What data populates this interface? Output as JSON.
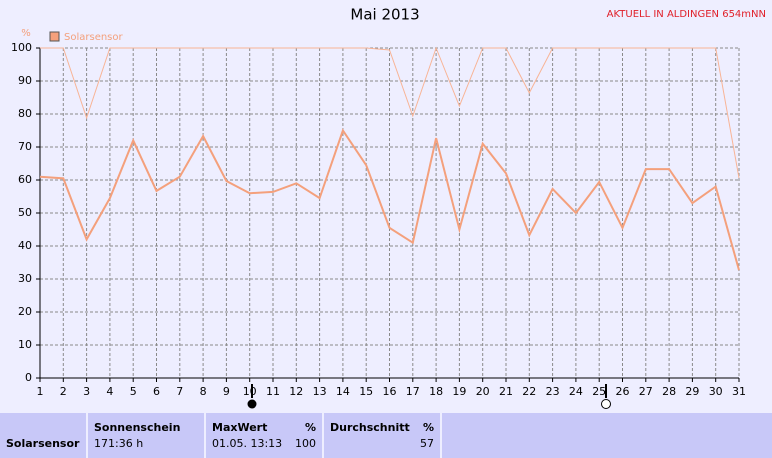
{
  "chart_data": {
    "type": "line",
    "title": "Mai 2013",
    "annotation": "AKTUELL IN ALDINGEN 654mNN",
    "y_label": "%",
    "x": [
      1,
      2,
      3,
      4,
      5,
      6,
      7,
      8,
      9,
      10,
      11,
      12,
      13,
      14,
      15,
      16,
      17,
      18,
      19,
      20,
      21,
      22,
      23,
      24,
      25,
      26,
      27,
      28,
      29,
      30,
      31
    ],
    "xlim": [
      1,
      31
    ],
    "xticks": [
      1,
      2,
      3,
      4,
      5,
      6,
      7,
      8,
      9,
      10,
      11,
      12,
      13,
      14,
      15,
      16,
      17,
      18,
      19,
      20,
      21,
      22,
      23,
      24,
      25,
      26,
      27,
      28,
      29,
      30,
      31
    ],
    "ylim": [
      0,
      100
    ],
    "yticks": [
      0,
      10,
      20,
      30,
      40,
      50,
      60,
      70,
      80,
      90,
      100
    ],
    "grid": true,
    "legend": "top-left",
    "series": [
      {
        "name": "Solarsensor",
        "color": "#f4a07c",
        "values": [
          61,
          60.5,
          42,
          54.5,
          72,
          56.7,
          61,
          73.3,
          59.7,
          56,
          56.4,
          59,
          54.5,
          75,
          64.5,
          45.5,
          41,
          72.7,
          45,
          71,
          62,
          43.3,
          57.3,
          50,
          59.4,
          45.5,
          63.3,
          63.3,
          53,
          58,
          32.7
        ]
      },
      {
        "color": "#f8b496",
        "values": [
          100,
          100,
          78.8,
          100,
          100,
          100,
          100,
          100,
          100,
          100,
          100,
          100,
          100,
          100,
          100,
          99.4,
          79.4,
          100,
          82.4,
          100,
          100,
          86.4,
          100,
          100,
          100,
          100,
          100,
          100,
          100,
          100,
          60.6
        ]
      }
    ]
  },
  "table": {
    "row_label": "Solarsensor",
    "cells": [
      {
        "header": "Sonnenschein",
        "values": [
          "171:36 h"
        ]
      },
      {
        "header": "MaxWert",
        "unit": "%",
        "values": [
          "01.05.  13:13",
          100
        ]
      },
      {
        "header": "Durchschnitt",
        "unit": "%",
        "values": [
          57
        ]
      }
    ]
  }
}
